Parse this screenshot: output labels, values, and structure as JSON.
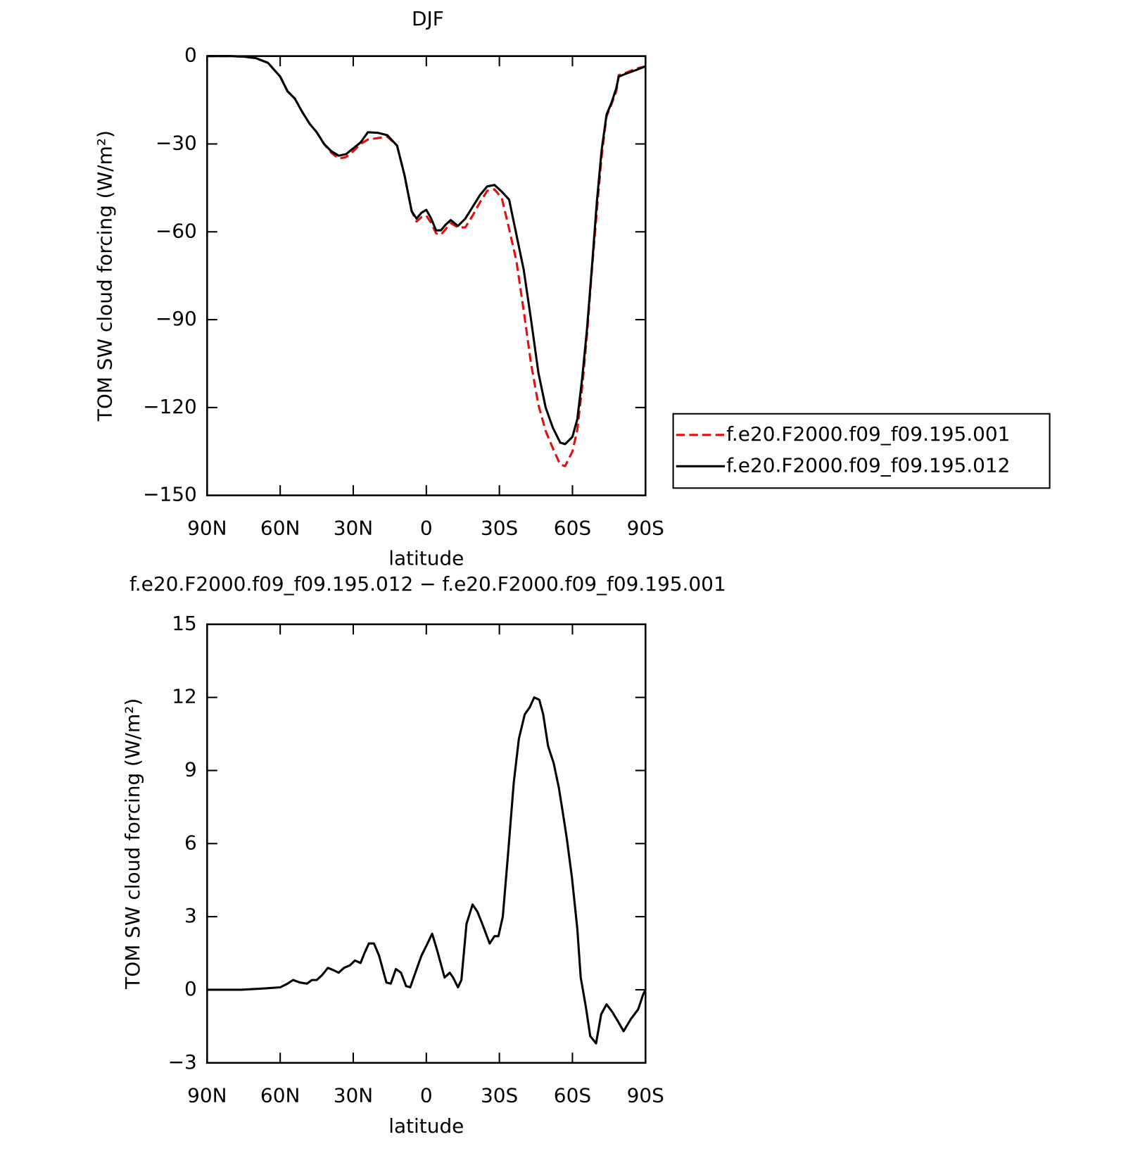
{
  "chart_data": [
    {
      "type": "line",
      "title": "DJF",
      "xlabel": "latitude",
      "ylabel": "TOM SW cloud forcing (W/m²)",
      "xlim": [
        90,
        -90
      ],
      "ylim": [
        -150,
        0
      ],
      "xticks": [
        {
          "value": 90,
          "label": "90N"
        },
        {
          "value": 60,
          "label": "60N"
        },
        {
          "value": 30,
          "label": "30N"
        },
        0,
        {
          "value": -30,
          "label": "30S"
        },
        {
          "value": -60,
          "label": "60S"
        },
        {
          "value": -90,
          "label": "90S"
        }
      ],
      "yticks": [
        0,
        {
          "value": -30,
          "label": "−30"
        },
        {
          "value": -60,
          "label": "−60"
        },
        {
          "value": -90,
          "label": "−90"
        },
        {
          "value": -120,
          "label": "−120"
        },
        {
          "value": -150,
          "label": "−150"
        }
      ],
      "legend": "outside-right",
      "x": [
        90,
        80,
        75,
        70,
        65,
        60,
        57,
        54,
        51,
        48,
        45,
        42,
        39,
        36,
        33,
        30,
        27,
        24,
        20,
        16,
        12,
        9,
        6,
        4,
        2,
        0,
        -2,
        -4,
        -6,
        -8,
        -10,
        -13,
        -16,
        -19,
        -22,
        -25,
        -28,
        -31,
        -34,
        -37,
        -40,
        -43,
        -46,
        -49,
        -52,
        -55,
        -57,
        -60,
        -62,
        -64,
        -66,
        -68,
        -70,
        -72,
        -74,
        -76,
        -78,
        -79,
        -82,
        -86,
        -90
      ],
      "series": [
        {
          "name": "f.e20.F2000.f09_f09.195.001",
          "color": "#e01010",
          "linestyle": "dashed",
          "values": [
            0,
            0,
            -0.2,
            -0.7,
            -2.3,
            -7,
            -12,
            -14.5,
            -19,
            -23,
            -26,
            -30,
            -33,
            -35,
            -34.5,
            -32.5,
            -30,
            -28.5,
            -28,
            -27.5,
            -30.6,
            -40.5,
            -53,
            -56.5,
            -55,
            -54.5,
            -57,
            -60.5,
            -61,
            -59,
            -57,
            -58.5,
            -58.5,
            -54.5,
            -50,
            -46,
            -45.5,
            -48.5,
            -59,
            -70,
            -87,
            -105,
            -119,
            -128,
            -134,
            -139.5,
            -140,
            -135,
            -127.6,
            -113,
            -95,
            -73,
            -53,
            -34,
            -20.6,
            -16.5,
            -12,
            -6.5,
            -5.7,
            -4.3,
            -3.5
          ]
        },
        {
          "name": "f.e20.F2000.f09_f09.195.012",
          "color": "#000000",
          "linestyle": "solid",
          "values": [
            0,
            0,
            -0.2,
            -0.7,
            -2.3,
            -7,
            -12,
            -14.5,
            -19,
            -23,
            -26,
            -30,
            -32.5,
            -34,
            -33.5,
            -31.5,
            -29.5,
            -26,
            -26.2,
            -27,
            -30.6,
            -40.5,
            -53,
            -55.5,
            -53.5,
            -52.5,
            -55.5,
            -59.5,
            -59.5,
            -57.5,
            -56,
            -58,
            -55.5,
            -51.5,
            -47.5,
            -44.5,
            -44,
            -46.3,
            -49,
            -61,
            -73,
            -90,
            -108,
            -120,
            -127,
            -132,
            -132.5,
            -130,
            -124,
            -110,
            -93,
            -72,
            -50,
            -32,
            -20,
            -16,
            -11,
            -7,
            -6,
            -4.8,
            -3.5
          ]
        }
      ]
    },
    {
      "type": "line",
      "title": "f.e20.F2000.f09_f09.195.012 − f.e20.F2000.f09_f09.195.001",
      "xlabel": "latitude",
      "ylabel": "TOM SW cloud forcing (W/m²)",
      "xlim": [
        90,
        -90
      ],
      "ylim": [
        -3,
        15
      ],
      "xticks": [
        {
          "value": 90,
          "label": "90N"
        },
        {
          "value": 60,
          "label": "60N"
        },
        {
          "value": 30,
          "label": "30N"
        },
        0,
        {
          "value": -30,
          "label": "30S"
        },
        {
          "value": -60,
          "label": "60S"
        },
        {
          "value": -90,
          "label": "90S"
        }
      ],
      "yticks": [
        15,
        12,
        9,
        6,
        3,
        0,
        {
          "value": -3,
          "label": "−3"
        }
      ],
      "x": [
        90,
        76,
        67,
        60,
        57,
        54.7,
        52,
        49,
        47,
        45,
        42.8,
        40.4,
        38,
        36,
        33.8,
        31.4,
        29.3,
        27,
        25.4,
        23.6,
        21.5,
        19.4,
        16.4,
        14.6,
        12.5,
        10.4,
        8.3,
        6.6,
        4.5,
        2,
        0,
        -2.4,
        -4.5,
        -7.5,
        -9.6,
        -11,
        -13,
        -14.4,
        -16.5,
        -19,
        -21,
        -23,
        -26,
        -28,
        -29.6,
        -31.4,
        -33.5,
        -35.9,
        -38,
        -40.4,
        -42.5,
        -44.3,
        -46.4,
        -48,
        -50,
        -52.3,
        -54.4,
        -56,
        -57.7,
        -59.8,
        -62,
        -63.4,
        -65.5,
        -67.3,
        -69.7,
        -71.8,
        -74,
        -76.3,
        -78.7,
        -81,
        -84,
        -87,
        -89,
        -90
      ],
      "series": [
        {
          "color": "#000000",
          "linestyle": "solid",
          "values": [
            0,
            0,
            0.05,
            0.1,
            0.25,
            0.4,
            0.3,
            0.25,
            0.4,
            0.4,
            0.6,
            0.9,
            0.8,
            0.7,
            0.9,
            1.0,
            1.2,
            1.1,
            1.5,
            1.9,
            1.9,
            1.4,
            0.3,
            0.25,
            0.85,
            0.7,
            0.15,
            0.1,
            0.7,
            1.4,
            1.8,
            2.3,
            1.6,
            0.5,
            0.7,
            0.5,
            0.1,
            0.4,
            2.7,
            3.5,
            3.2,
            2.7,
            1.9,
            2.2,
            2.2,
            3.0,
            5.5,
            8.5,
            10.3,
            11.3,
            11.6,
            12.0,
            11.9,
            11.3,
            10.0,
            9.3,
            8.3,
            7.3,
            6.2,
            4.6,
            2.5,
            0.5,
            -0.7,
            -1.9,
            -2.2,
            -1.0,
            -0.6,
            -0.9,
            -1.3,
            -1.7,
            -1.2,
            -0.8,
            -0.2,
            0
          ]
        }
      ]
    }
  ]
}
